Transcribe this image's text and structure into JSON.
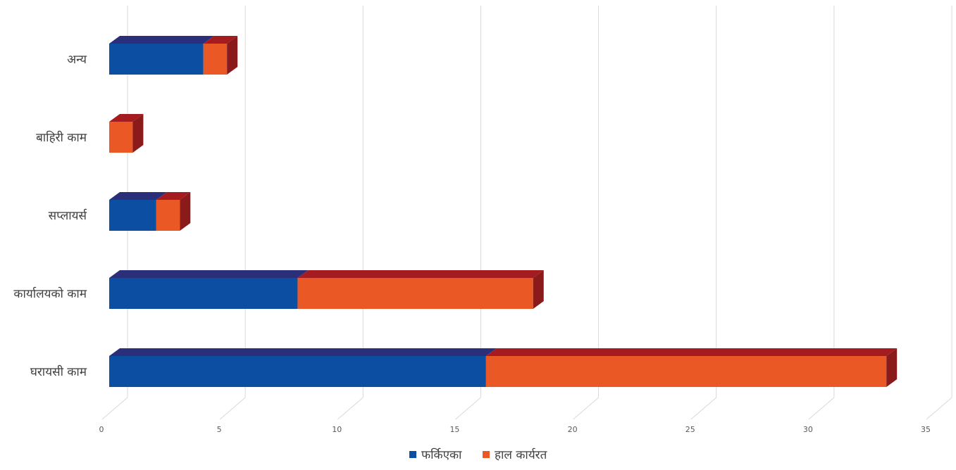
{
  "chart_data": {
    "type": "bar",
    "orientation": "horizontal",
    "stacked": true,
    "style": "3d",
    "categories": [
      "घरायसी काम",
      "कार्यालयको काम",
      "सप्लायर्स",
      "बाहिरी काम",
      "अन्य"
    ],
    "series": [
      {
        "name": "फर्किएका",
        "values": [
          16,
          8,
          2,
          0,
          4
        ],
        "color": "#0B4EA2",
        "top_color": "#2B2F7A"
      },
      {
        "name": "हाल कार्यरत",
        "values": [
          17,
          10,
          1,
          1,
          1
        ],
        "color": "#E95825",
        "top_color": "#A51C20"
      }
    ],
    "xlim": [
      0,
      35
    ],
    "x_ticks": [
      0,
      5,
      10,
      15,
      20,
      25,
      30,
      35
    ],
    "gridlines": true,
    "legend_position": "bottom",
    "title": "",
    "xlabel": "",
    "ylabel": ""
  }
}
